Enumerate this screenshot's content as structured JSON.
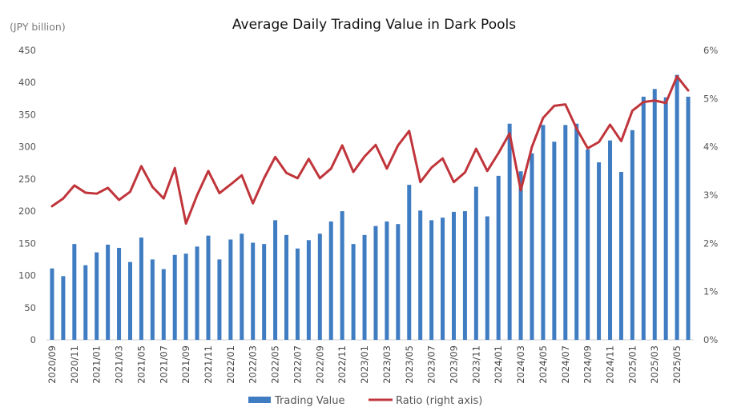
{
  "chart_data": {
    "type": "bar+line",
    "title": "Average Daily Trading Value in Dark Pools",
    "unit_label": "(JPY billion)",
    "y_left": {
      "min": 0,
      "max": 450,
      "ticks": [
        0,
        50,
        100,
        150,
        200,
        250,
        300,
        350,
        400,
        450
      ]
    },
    "y_right": {
      "min": 0,
      "max": 6,
      "ticks": [
        0,
        1,
        2,
        3,
        4,
        5,
        6
      ],
      "tick_labels": [
        "0%",
        "1%",
        "2%",
        "3%",
        "4%",
        "5%",
        "6%"
      ]
    },
    "categories": [
      "2020/09",
      "2020/10",
      "2020/11",
      "2020/12",
      "2021/01",
      "2021/02",
      "2021/03",
      "2021/04",
      "2021/05",
      "2021/06",
      "2021/07",
      "2021/08",
      "2021/09",
      "2021/10",
      "2021/11",
      "2021/12",
      "2022/01",
      "2022/02",
      "2022/03",
      "2022/04",
      "2022/05",
      "2022/06",
      "2022/07",
      "2022/08",
      "2022/09",
      "2022/10",
      "2022/11",
      "2022/12",
      "2023/01",
      "2023/02",
      "2023/03",
      "2023/04",
      "2023/05",
      "2023/06",
      "2023/07",
      "2023/08",
      "2023/09",
      "2023/10",
      "2023/11",
      "2023/12",
      "2024/01",
      "2024/02",
      "2024/03",
      "2024/04",
      "2024/05",
      "2024/06",
      "2024/07",
      "2024/08",
      "2024/09",
      "2024/10",
      "2024/11",
      "2024/12",
      "2025/01",
      "2025/02",
      "2025/03",
      "2025/04",
      "2025/05",
      "2025/06"
    ],
    "x_tick_labels": [
      "2020/09",
      "",
      "2020/11",
      "",
      "2021/01",
      "",
      "2021/03",
      "",
      "2021/05",
      "",
      "2021/07",
      "",
      "2021/09",
      "",
      "2021/11",
      "",
      "2022/01",
      "",
      "2022/03",
      "",
      "2022/05",
      "",
      "2022/07",
      "",
      "2022/09",
      "",
      "2022/11",
      "",
      "2023/01",
      "",
      "2023/03",
      "",
      "2023/05",
      "",
      "2023/07",
      "",
      "2023/09",
      "",
      "2023/11",
      "",
      "2024/01",
      "",
      "2024/03",
      "",
      "2024/05",
      "",
      "2024/07",
      "",
      "2024/09",
      "",
      "2024/11",
      "",
      "2025/01",
      "",
      "2025/03",
      "",
      "2025/05",
      ""
    ],
    "series": [
      {
        "name": "Trading Value",
        "type": "bar",
        "axis": "left",
        "color": "#3f7cc1",
        "values": [
          111,
          99,
          149,
          116,
          136,
          148,
          143,
          121,
          159,
          125,
          110,
          132,
          134,
          145,
          162,
          125,
          156,
          165,
          151,
          149,
          186,
          163,
          142,
          155,
          165,
          184,
          200,
          149,
          163,
          177,
          184,
          180,
          241,
          201,
          186,
          190,
          199,
          200,
          238,
          192,
          255,
          336,
          262,
          290,
          334,
          308,
          334,
          336,
          296,
          276,
          310,
          261,
          326,
          378,
          390,
          377,
          412,
          378
        ]
      },
      {
        "name": "Ratio (right axis)",
        "type": "line",
        "axis": "right",
        "color": "#c0353b",
        "values": [
          2.77,
          2.93,
          3.2,
          3.05,
          3.03,
          3.15,
          2.9,
          3.07,
          3.6,
          3.17,
          2.93,
          3.56,
          2.41,
          3.0,
          3.5,
          3.04,
          3.22,
          3.41,
          2.83,
          3.35,
          3.79,
          3.46,
          3.35,
          3.75,
          3.35,
          3.55,
          4.03,
          3.48,
          3.8,
          4.04,
          3.55,
          4.03,
          4.33,
          3.27,
          3.57,
          3.76,
          3.27,
          3.47,
          3.96,
          3.5,
          3.87,
          4.28,
          3.1,
          4.0,
          4.6,
          4.85,
          4.88,
          4.38,
          3.97,
          4.1,
          4.46,
          4.12,
          4.75,
          4.93,
          4.96,
          4.91,
          5.46,
          5.17
        ]
      }
    ],
    "grid": false,
    "legend": "bottom-center"
  }
}
